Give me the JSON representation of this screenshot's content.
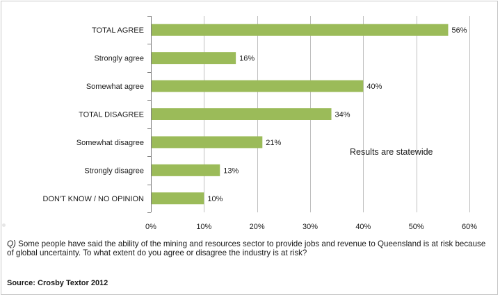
{
  "chart_data": {
    "type": "bar",
    "orientation": "horizontal",
    "categories": [
      "TOTAL AGREE",
      "Strongly agree",
      "Somewhat agree",
      "TOTAL DISAGREE",
      "Somewhat disagree",
      "Strongly disagree",
      "DON'T KNOW / NO OPINION"
    ],
    "values": [
      56,
      16,
      40,
      34,
      21,
      13,
      10
    ],
    "data_labels": [
      "56%",
      "16%",
      "40%",
      "34%",
      "21%",
      "13%",
      "10%"
    ],
    "xlim": [
      0,
      60
    ],
    "xticks": [
      0,
      10,
      20,
      30,
      40,
      50,
      60
    ],
    "xtick_labels": [
      "0%",
      "10%",
      "20%",
      "30%",
      "40%",
      "50%",
      "60%"
    ],
    "grid": "vertical",
    "bar_color": "#9bbb59",
    "annotation": "Results are statewide"
  },
  "question": {
    "prefix": "Q)",
    "text": " Some people have said the ability of the mining and resources sector to provide jobs and revenue to Queensland is at risk because of global uncertainty. To what extent do you agree or disagree the industry is at risk?"
  },
  "source": "Source: Crosby Textor 2012"
}
